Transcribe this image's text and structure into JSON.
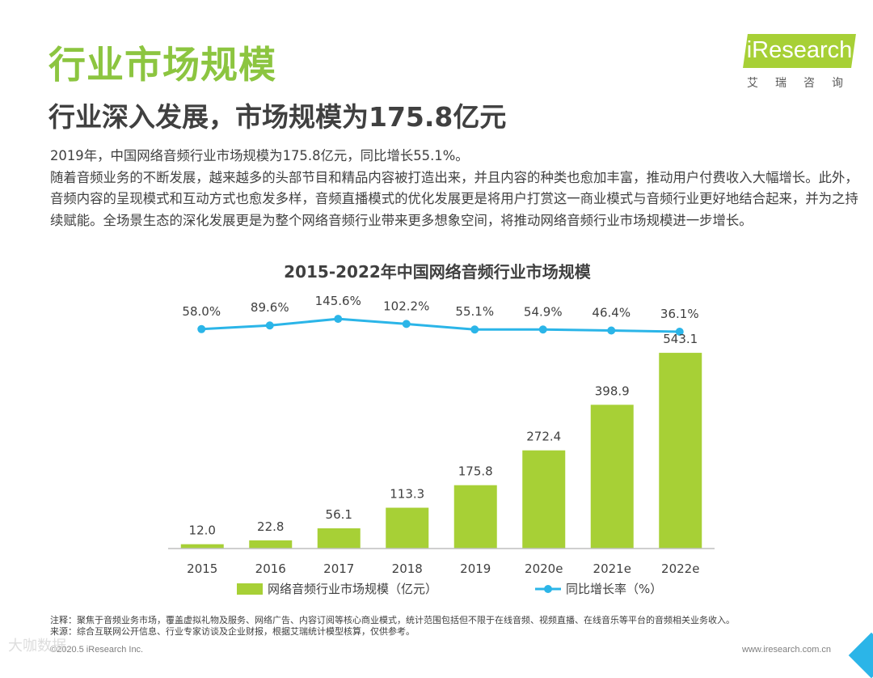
{
  "page": {
    "title": "行业市场规模",
    "subtitle": "行业深入发展，市场规模为175.8亿元"
  },
  "logo": {
    "brand": "iResearch",
    "sub": "艾瑞咨询"
  },
  "paragraph": [
    "2019年，中国网络音频行业市场规模为175.8亿元，同比增长55.1%。",
    "随着音频业务的不断发展，越来越多的头部节目和精品内容被打造出来，并且内容的种类也愈加丰富，推动用户付费收入大幅增长。此外，音频内容的呈现模式和互动方式也愈发多样，音频直播模式的优化发展更是将用户打赏这一商业模式与音频行业更好地结合起来，并为之持续赋能。全场景生态的深化发展更是为整个网络音频行业带来更多想象空间，将推动网络音频行业市场规模进一步增长。"
  ],
  "chart_data": {
    "type": "bar",
    "title": "2015-2022年中国网络音频行业市场规模",
    "categories": [
      "2015",
      "2016",
      "2017",
      "2018",
      "2019",
      "2020e",
      "2021e",
      "2022e"
    ],
    "series": [
      {
        "name": "网络音频行业市场规模（亿元）",
        "type": "bar",
        "color": "#a7d036",
        "values": [
          12.0,
          22.8,
          56.1,
          113.3,
          175.8,
          272.4,
          398.9,
          543.1
        ],
        "labels": [
          "12.0",
          "22.8",
          "56.1",
          "113.3",
          "175.8",
          "272.4",
          "398.9",
          "543.1"
        ]
      },
      {
        "name": "同比增长率（%）",
        "type": "line",
        "color": "#2bb5e8",
        "values": [
          58.0,
          89.6,
          145.6,
          102.2,
          55.1,
          54.9,
          46.4,
          36.1
        ],
        "labels": [
          "58.0%",
          "89.6%",
          "145.6%",
          "102.2%",
          "55.1%",
          "54.9%",
          "46.4%",
          "36.1%"
        ]
      }
    ],
    "xlabel": "",
    "ylabel": "",
    "ylim": [
      0,
      600
    ],
    "grid": false,
    "legend": "bottom"
  },
  "notes": {
    "note": "注释：聚焦于音频业务市场，覆盖虚拟礼物及服务、网络广告、内容订阅等核心商业模式，统计范围包括但不限于在线音频、视频直播、在线音乐等平台的音频相关业务收入。",
    "source": "来源：综合互联网公开信息、行业专家访谈及企业财报，根据艾瑞统计模型核算，仅供参考。"
  },
  "footer": {
    "copyright": "©2020.5 iResearch Inc.",
    "website": "www.iresearch.com.cn",
    "watermark": "大咖数据"
  },
  "colors": {
    "title": "#8cc540",
    "bar": "#a7d036",
    "line": "#2bb5e8",
    "text": "#404040"
  }
}
